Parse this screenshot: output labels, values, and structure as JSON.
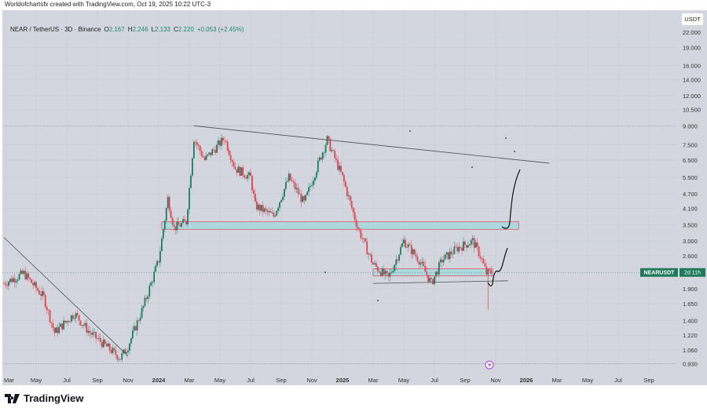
{
  "credit": "Worldofchartsfx created with TradingView.com, Oct 19, 2025 10:22 UTC-3",
  "legend": {
    "symbol": "NEAR / TetherUS · 3D · Binance",
    "o_label": "O",
    "o": "2.167",
    "h_label": "H",
    "h": "2.246",
    "l_label": "L",
    "l": "2.133",
    "c_label": "C",
    "c": "2.220",
    "change": "+0.053 (+2.45%)"
  },
  "currency": "USDT",
  "price_label": {
    "symbol": "NEARUSDT",
    "countdown": "2d 11h",
    "color": "#1f7a5c"
  },
  "brand": "TradingView",
  "colors": {
    "up": "#1e7b63",
    "down": "#e0424f",
    "zone": "#a8d8de",
    "zone_border": "#d6596a",
    "background": "#d3d6de"
  },
  "chart_data": {
    "type": "candlestick",
    "title": "NEAR / TetherUS · 3D · Binance",
    "yscale": "log",
    "ylim": [
      0.93,
      22.0
    ],
    "y_ticks": [
      "22.000",
      "19.000",
      "16.000",
      "14.000",
      "12.000",
      "10.500",
      "9.000",
      "7.500",
      "6.500",
      "5.500",
      "4.700",
      "4.100",
      "3.500",
      "3.000",
      "2.600",
      "1.900",
      "1.650",
      "1.400",
      "1.220",
      "1.060",
      "0.930"
    ],
    "x_ticks": [
      "Mar",
      "May",
      "Jul",
      "Sep",
      "Nov",
      "2024",
      "Mar",
      "May",
      "Jul",
      "Sep",
      "Nov",
      "2025",
      "Mar",
      "May",
      "Jul",
      "Sep",
      "Nov",
      "2026",
      "Mar",
      "May",
      "Jul",
      "Sep"
    ],
    "x_ticks_months_from_2024": [
      -10,
      -8,
      -6,
      -4,
      -2,
      0,
      2,
      4,
      6,
      8,
      10,
      12,
      14,
      16,
      18,
      20,
      22,
      24,
      26,
      28,
      30,
      32
    ],
    "price_path_months_from_2024": [
      [
        -10.1,
        2.0
      ],
      [
        -8.8,
        2.2
      ],
      [
        -7.5,
        1.75
      ],
      [
        -6.8,
        1.25
      ],
      [
        -5.5,
        1.5
      ],
      [
        -4.5,
        1.25
      ],
      [
        -2.5,
        0.98
      ],
      [
        -2,
        1.1
      ],
      [
        -1,
        1.6
      ],
      [
        0,
        2.5
      ],
      [
        0.6,
        4.5
      ],
      [
        1.0,
        3.4
      ],
      [
        1.8,
        3.6
      ],
      [
        2.3,
        8.0
      ],
      [
        3,
        6.5
      ],
      [
        4.3,
        8.0
      ],
      [
        5,
        6.0
      ],
      [
        6,
        5.5
      ],
      [
        6.3,
        4.2
      ],
      [
        7.5,
        3.8
      ],
      [
        8.5,
        5.5
      ],
      [
        9.5,
        4.3
      ],
      [
        10.5,
        6.5
      ],
      [
        11,
        7.9
      ],
      [
        12,
        5.5
      ],
      [
        13,
        3.4
      ],
      [
        14,
        2.4
      ],
      [
        15,
        2.1
      ],
      [
        16,
        3.0
      ],
      [
        17,
        2.5
      ],
      [
        17.8,
        2.0
      ],
      [
        18.5,
        2.5
      ],
      [
        19.5,
        2.8
      ],
      [
        20.5,
        3.0
      ],
      [
        21,
        2.6
      ],
      [
        21.4,
        2.2
      ],
      [
        21.7,
        2.22
      ]
    ],
    "last_price": 2.22,
    "annotations": {
      "descending_resistance": [
        [
          2.3,
          9.0
        ],
        [
          25.5,
          6.3
        ]
      ],
      "old_downtrend": [
        [
          -10.1,
          3.1
        ],
        [
          -2,
          1.0
        ]
      ],
      "resistance_zone": {
        "from": 0.2,
        "to": 23.5,
        "low": 3.35,
        "high": 3.6
      },
      "support_zone": {
        "from": 14,
        "to": 21.8,
        "low": 2.15,
        "high": 2.3
      },
      "support_line": [
        [
          14,
          2.0
        ],
        [
          22.8,
          2.05
        ]
      ],
      "dotted_levels": [
        9.0,
        0.93
      ]
    }
  }
}
